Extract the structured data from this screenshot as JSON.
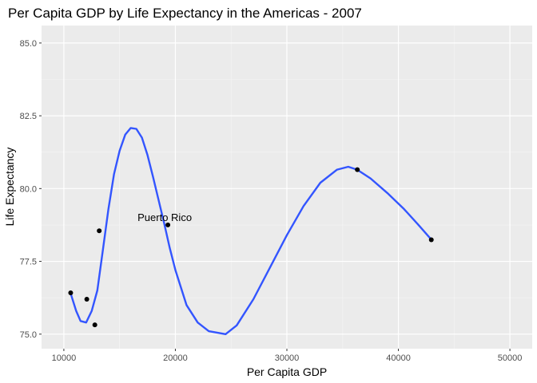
{
  "chart_data": {
    "type": "scatter",
    "title": "Per Capita GDP by Life Expectancy in the Americas - 2007",
    "xlabel": "Per Capita GDP",
    "ylabel": "Life Expectancy",
    "xlim": [
      8000,
      52000
    ],
    "ylim": [
      74.5,
      85.6
    ],
    "x_ticks": [
      10000,
      20000,
      30000,
      40000,
      50000
    ],
    "x_tick_labels": [
      "10000",
      "20000",
      "30000",
      "40000",
      "50000"
    ],
    "y_ticks": [
      75.0,
      77.5,
      80.0,
      82.5,
      85.0
    ],
    "y_tick_labels": [
      "75.0",
      "77.5",
      "80.0",
      "82.5",
      "85.0"
    ],
    "grid": true,
    "points": [
      {
        "x": 10611,
        "y": 76.42
      },
      {
        "x": 12057,
        "y": 76.2
      },
      {
        "x": 12779,
        "y": 75.32
      },
      {
        "x": 13172,
        "y": 78.55
      },
      {
        "x": 19329,
        "y": 78.75
      },
      {
        "x": 36319,
        "y": 80.65
      },
      {
        "x": 42952,
        "y": 78.24
      }
    ],
    "smooth_line": [
      {
        "x": 10611,
        "y": 76.4
      },
      {
        "x": 11100,
        "y": 75.8
      },
      {
        "x": 11500,
        "y": 75.45
      },
      {
        "x": 12000,
        "y": 75.4
      },
      {
        "x": 12500,
        "y": 75.8
      },
      {
        "x": 13000,
        "y": 76.5
      },
      {
        "x": 13500,
        "y": 77.9
      },
      {
        "x": 14000,
        "y": 79.3
      },
      {
        "x": 14500,
        "y": 80.5
      },
      {
        "x": 15000,
        "y": 81.3
      },
      {
        "x": 15500,
        "y": 81.85
      },
      {
        "x": 16000,
        "y": 82.08
      },
      {
        "x": 16500,
        "y": 82.05
      },
      {
        "x": 17000,
        "y": 81.75
      },
      {
        "x": 17500,
        "y": 81.15
      },
      {
        "x": 18000,
        "y": 80.4
      },
      {
        "x": 18500,
        "y": 79.6
      },
      {
        "x": 19000,
        "y": 78.8
      },
      {
        "x": 19500,
        "y": 77.95
      },
      {
        "x": 20000,
        "y": 77.2
      },
      {
        "x": 21000,
        "y": 76.0
      },
      {
        "x": 22000,
        "y": 75.4
      },
      {
        "x": 23000,
        "y": 75.1
      },
      {
        "x": 24500,
        "y": 75.0
      },
      {
        "x": 25500,
        "y": 75.3
      },
      {
        "x": 27000,
        "y": 76.2
      },
      {
        "x": 28500,
        "y": 77.3
      },
      {
        "x": 30000,
        "y": 78.4
      },
      {
        "x": 31500,
        "y": 79.4
      },
      {
        "x": 33000,
        "y": 80.2
      },
      {
        "x": 34500,
        "y": 80.65
      },
      {
        "x": 35500,
        "y": 80.75
      },
      {
        "x": 36300,
        "y": 80.65
      },
      {
        "x": 37500,
        "y": 80.35
      },
      {
        "x": 39000,
        "y": 79.85
      },
      {
        "x": 40500,
        "y": 79.3
      },
      {
        "x": 41800,
        "y": 78.75
      },
      {
        "x": 42952,
        "y": 78.25
      }
    ],
    "line_color": "#3355ff",
    "point_color": "#000000",
    "panel_bg": "#ebebeb",
    "annotations": [
      {
        "text": "Puerto Rico",
        "x": 19329,
        "y": 78.75
      }
    ]
  }
}
